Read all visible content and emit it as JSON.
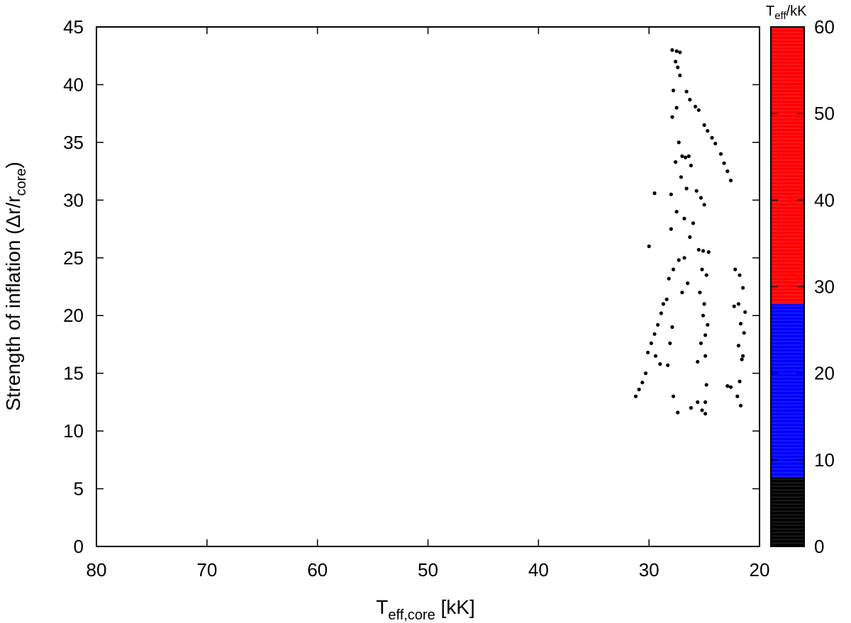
{
  "chart_data": {
    "type": "scatter",
    "title": "",
    "x_axis": {
      "label_main": "T",
      "label_sub": "eff,core",
      "label_unit": " [kK]",
      "range": [
        80,
        20
      ],
      "reversed": true,
      "ticks": [
        "80",
        "70",
        "60",
        "50",
        "40",
        "30",
        "20"
      ]
    },
    "y_axis": {
      "label_main": "Strength of inflation (Δr/r",
      "label_sub": "core",
      "label_end": ")",
      "range": [
        0,
        45
      ],
      "ticks": [
        "0",
        "5",
        "10",
        "15",
        "20",
        "25",
        "30",
        "35",
        "40",
        "45"
      ]
    },
    "colorbar": {
      "title_main": "T",
      "title_sub": "eff",
      "title_unit": "/kK",
      "range": [
        0,
        60
      ],
      "ticks": [
        "0",
        "10",
        "20",
        "30",
        "40",
        "50",
        "60"
      ],
      "segments": [
        {
          "from": 0,
          "to": 8,
          "color": "#000000"
        },
        {
          "from": 8,
          "to": 28,
          "color": "#0000ff"
        },
        {
          "from": 28,
          "to": 60,
          "color": "#ff0000"
        }
      ]
    },
    "series": [
      {
        "color": "#000000",
        "points": [
          [
            27.9,
            43.0
          ],
          [
            27.5,
            42.9
          ],
          [
            27.2,
            42.8
          ],
          [
            27.6,
            42.0
          ],
          [
            27.4,
            41.5
          ],
          [
            27.2,
            40.8
          ],
          [
            27.8,
            39.5
          ],
          [
            27.5,
            38.0
          ],
          [
            27.9,
            37.2
          ],
          [
            26.6,
            39.4
          ],
          [
            26.3,
            38.7
          ],
          [
            25.8,
            38.1
          ],
          [
            25.5,
            37.8
          ],
          [
            25.0,
            36.5
          ],
          [
            24.7,
            36.0
          ],
          [
            24.3,
            35.4
          ],
          [
            24.0,
            34.9
          ],
          [
            23.5,
            34.0
          ],
          [
            23.2,
            33.2
          ],
          [
            22.9,
            32.5
          ],
          [
            22.6,
            31.7
          ],
          [
            27.3,
            35.0
          ],
          [
            27.0,
            33.8
          ],
          [
            26.7,
            33.7
          ],
          [
            26.4,
            33.8
          ],
          [
            26.2,
            33.0
          ],
          [
            27.6,
            33.3
          ],
          [
            27.1,
            32.0
          ],
          [
            26.6,
            31.0
          ],
          [
            25.7,
            30.8
          ],
          [
            25.3,
            30.2
          ],
          [
            25.0,
            29.6
          ],
          [
            26.0,
            28.0
          ],
          [
            26.8,
            28.4
          ],
          [
            27.5,
            29.0
          ],
          [
            28.0,
            27.5
          ],
          [
            26.3,
            26.8
          ],
          [
            25.5,
            25.7
          ],
          [
            25.1,
            25.6
          ],
          [
            24.6,
            25.5
          ],
          [
            26.8,
            25.0
          ],
          [
            27.3,
            24.8
          ],
          [
            27.8,
            24.0
          ],
          [
            28.2,
            23.2
          ],
          [
            26.5,
            22.8
          ],
          [
            27.0,
            22.0
          ],
          [
            28.4,
            21.4
          ],
          [
            28.7,
            21.0
          ],
          [
            28.9,
            20.2
          ],
          [
            29.2,
            19.2
          ],
          [
            29.5,
            18.4
          ],
          [
            29.8,
            17.6
          ],
          [
            30.1,
            16.8
          ],
          [
            29.4,
            16.5
          ],
          [
            29.0,
            15.8
          ],
          [
            30.3,
            15.0
          ],
          [
            30.6,
            14.2
          ],
          [
            30.9,
            13.6
          ],
          [
            31.2,
            13.0
          ],
          [
            27.9,
            19.0
          ],
          [
            28.1,
            17.6
          ],
          [
            28.3,
            15.7
          ],
          [
            27.8,
            13.0
          ],
          [
            27.4,
            11.6
          ],
          [
            26.2,
            12.0
          ],
          [
            25.6,
            12.5
          ],
          [
            25.2,
            11.8
          ],
          [
            24.9,
            11.5
          ],
          [
            25.6,
            16.0
          ],
          [
            25.3,
            17.6
          ],
          [
            24.9,
            18.3
          ],
          [
            25.1,
            20.0
          ],
          [
            24.7,
            19.2
          ],
          [
            25.4,
            22.0
          ],
          [
            24.8,
            23.5
          ],
          [
            25.2,
            24.0
          ],
          [
            25.0,
            21.0
          ],
          [
            24.9,
            16.5
          ],
          [
            24.8,
            14.0
          ],
          [
            24.9,
            12.5
          ],
          [
            28.0,
            30.5
          ],
          [
            29.5,
            30.6
          ],
          [
            30.0,
            26.0
          ],
          [
            22.2,
            24.0
          ],
          [
            21.8,
            23.5
          ],
          [
            21.5,
            22.4
          ],
          [
            21.9,
            21.0
          ],
          [
            22.3,
            20.8
          ],
          [
            21.7,
            19.3
          ],
          [
            21.4,
            18.5
          ],
          [
            21.9,
            17.4
          ],
          [
            21.6,
            16.2
          ],
          [
            21.3,
            20.3
          ],
          [
            21.8,
            14.3
          ],
          [
            22.0,
            13.0
          ],
          [
            21.7,
            12.2
          ],
          [
            22.6,
            13.8
          ],
          [
            22.9,
            13.9
          ],
          [
            21.5,
            16.5
          ]
        ]
      }
    ]
  }
}
